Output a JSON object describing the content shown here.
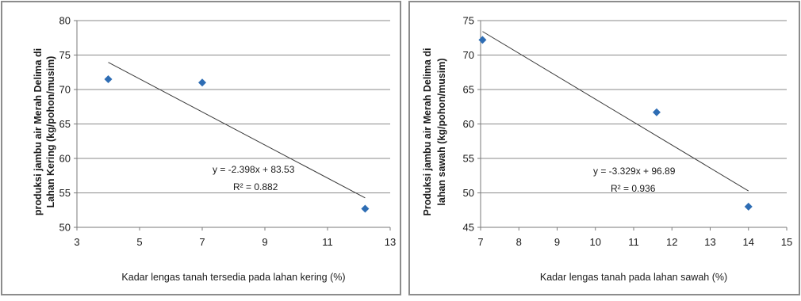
{
  "chart_data": [
    {
      "type": "scatter",
      "xlabel": "Kadar lengas tanah tersedia pada lahan kering  (%)",
      "ylabel_lines": [
        "produksi jambu air Merah Delima di",
        "Lahan Kering (kg/pohon/musim)"
      ],
      "xlim": [
        3,
        13
      ],
      "ylim": [
        50,
        80
      ],
      "xticks": [
        3,
        5,
        7,
        9,
        11,
        13
      ],
      "yticks": [
        50,
        55,
        60,
        65,
        70,
        75,
        80
      ],
      "grid": "horizontal",
      "points": [
        {
          "x": 4.0,
          "y": 71.5
        },
        {
          "x": 7.0,
          "y": 71.0
        },
        {
          "x": 12.2,
          "y": 52.7
        }
      ],
      "marker_color": "#2e6db4",
      "trendline": {
        "slope": -2.398,
        "intercept": 83.53,
        "x_range": [
          4.0,
          12.2
        ]
      },
      "equation": "y = -2.398x + 83.53",
      "r2_label": "R² = 0.882"
    },
    {
      "type": "scatter",
      "xlabel": "Kadar lengas tanah pada lahan sawah (%)",
      "ylabel_lines": [
        "Produksi jambu air Merah Delima di",
        "lahan sawah (kg/pohon/musim)"
      ],
      "xlim": [
        7,
        15
      ],
      "ylim": [
        45,
        75
      ],
      "xticks": [
        7,
        8,
        9,
        10,
        11,
        12,
        13,
        14,
        15
      ],
      "yticks": [
        45,
        50,
        55,
        60,
        65,
        70,
        75
      ],
      "grid": "horizontal",
      "points": [
        {
          "x": 7.05,
          "y": 72.2
        },
        {
          "x": 11.6,
          "y": 61.7
        },
        {
          "x": 14.0,
          "y": 48.0
        }
      ],
      "marker_color": "#2e6db4",
      "trendline": {
        "slope": -3.329,
        "intercept": 96.89,
        "x_range": [
          7.05,
          14.0
        ]
      },
      "equation": "y = -3.329x + 96.89",
      "r2_label": "R² = 0.936"
    }
  ]
}
